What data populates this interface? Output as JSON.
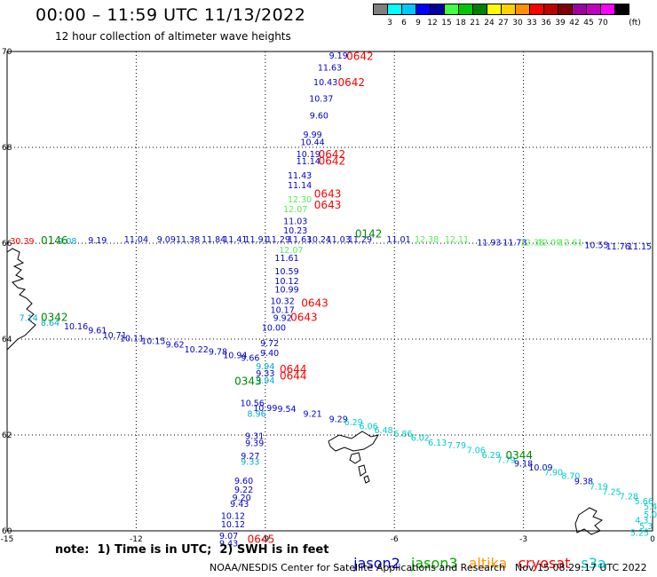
{
  "title": "00:00 – 11:59 UTC 11/13/2022",
  "subtitle": "12 hour collection of altimeter wave heights",
  "legend": {
    "unit": "(ft)",
    "colors": [
      "#7f7f7f",
      "#00ffff",
      "#00c8ff",
      "#0000ff",
      "#0000a0",
      "#40ff40",
      "#00c800",
      "#008000",
      "#ffff00",
      "#ffd000",
      "#ff9000",
      "#ff0000",
      "#c00000",
      "#800000",
      "#a000a0",
      "#c000c0",
      "#ff00ff",
      "#000000"
    ],
    "labels": [
      "3",
      "6",
      "9",
      "12",
      "15",
      "18",
      "21",
      "24",
      "27",
      "30",
      "33",
      "36",
      "39",
      "42",
      "45",
      "70"
    ]
  },
  "satellite_colors": {
    "jason2": "#0000cc",
    "jason3": "#00aa00",
    "altika": "#ff9900",
    "cryosat": "#ff0000",
    "s3a": "#00cccc"
  },
  "axes": {
    "lat_labels": [
      "70",
      "68",
      "66",
      "64",
      "62",
      "60"
    ],
    "lon_labels": [
      "-15",
      "-12",
      "-9",
      "-6",
      "-3",
      "0"
    ]
  },
  "observations": [
    {
      "t": "9.19",
      "c": "#0000cc",
      "lon": -7.3,
      "lat": 69.85
    },
    {
      "t": "11.63",
      "c": "#0000cc",
      "lon": -7.5,
      "lat": 69.6
    },
    {
      "t": "10.43",
      "c": "#0000cc",
      "lon": -7.6,
      "lat": 69.3
    },
    {
      "t": "10.37",
      "c": "#0000cc",
      "lon": -7.7,
      "lat": 68.95
    },
    {
      "t": "9.60",
      "c": "#0000cc",
      "lon": -7.75,
      "lat": 68.6
    },
    {
      "t": "9.99",
      "c": "#0000cc",
      "lon": -7.9,
      "lat": 68.2
    },
    {
      "t": "10.44",
      "c": "#0000cc",
      "lon": -7.9,
      "lat": 68.05
    },
    {
      "t": "10.19",
      "c": "#0000cc",
      "lon": -8.0,
      "lat": 67.8
    },
    {
      "t": "11.14",
      "c": "#0000cc",
      "lon": -8.0,
      "lat": 67.65
    },
    {
      "t": "11.43",
      "c": "#0000cc",
      "lon": -8.2,
      "lat": 67.35
    },
    {
      "t": "11.14",
      "c": "#0000cc",
      "lon": -8.2,
      "lat": 67.15
    },
    {
      "t": "12.30",
      "c": "#55ee55",
      "lon": -8.2,
      "lat": 66.85
    },
    {
      "t": "12.07",
      "c": "#55ee55",
      "lon": -8.3,
      "lat": 66.65
    },
    {
      "t": "11.03",
      "c": "#0000cc",
      "lon": -8.3,
      "lat": 66.4
    },
    {
      "t": "10.23",
      "c": "#0000cc",
      "lon": -8.3,
      "lat": 66.2
    },
    {
      "t": "12.07",
      "c": "#55ee55",
      "lon": -8.4,
      "lat": 65.8
    },
    {
      "t": "11.61",
      "c": "#0000cc",
      "lon": -8.5,
      "lat": 65.63
    },
    {
      "t": "10.59",
      "c": "#0000cc",
      "lon": -8.5,
      "lat": 65.35
    },
    {
      "t": "10.12",
      "c": "#0000cc",
      "lon": -8.5,
      "lat": 65.15
    },
    {
      "t": "10.99",
      "c": "#0000cc",
      "lon": -8.5,
      "lat": 64.97
    },
    {
      "t": "10.32",
      "c": "#0000cc",
      "lon": -8.6,
      "lat": 64.73
    },
    {
      "t": "10.17",
      "c": "#0000cc",
      "lon": -8.6,
      "lat": 64.55
    },
    {
      "t": "9.92",
      "c": "#0000cc",
      "lon": -8.6,
      "lat": 64.38
    },
    {
      "t": "10.00",
      "c": "#0000cc",
      "lon": -8.8,
      "lat": 64.18
    },
    {
      "t": "9.72",
      "c": "#0000cc",
      "lon": -8.9,
      "lat": 63.85
    },
    {
      "t": "9.40",
      "c": "#0000cc",
      "lon": -8.9,
      "lat": 63.65
    },
    {
      "t": "9.94",
      "c": "#00aacc",
      "lon": -9.0,
      "lat": 63.37
    },
    {
      "t": "9.33",
      "c": "#0000cc",
      "lon": -9.0,
      "lat": 63.22
    },
    {
      "t": "9.94",
      "c": "#00aacc",
      "lon": -9.0,
      "lat": 63.07
    },
    {
      "t": "10.56",
      "c": "#0000cc",
      "lon": -9.3,
      "lat": 62.6
    },
    {
      "t": "10.99",
      "c": "#0000cc",
      "lon": -9.0,
      "lat": 62.5
    },
    {
      "t": "8.96",
      "c": "#00aacc",
      "lon": -9.2,
      "lat": 62.38
    },
    {
      "t": "9.54",
      "c": "#0000cc",
      "lon": -8.5,
      "lat": 62.48
    },
    {
      "t": "9.21",
      "c": "#0000cc",
      "lon": -7.9,
      "lat": 62.38
    },
    {
      "t": "9.29",
      "c": "#0000cc",
      "lon": -7.3,
      "lat": 62.27
    },
    {
      "t": "9.31",
      "c": "#0000cc",
      "lon": -9.25,
      "lat": 61.92
    },
    {
      "t": "9.39",
      "c": "#0000cc",
      "lon": -9.25,
      "lat": 61.77
    },
    {
      "t": "9.27",
      "c": "#0000cc",
      "lon": -9.35,
      "lat": 61.5
    },
    {
      "t": "9.33",
      "c": "#00aacc",
      "lon": -9.35,
      "lat": 61.38
    },
    {
      "t": "9.60",
      "c": "#0000cc",
      "lon": -9.5,
      "lat": 60.98
    },
    {
      "t": "9.22",
      "c": "#0000cc",
      "lon": -9.5,
      "lat": 60.8
    },
    {
      "t": "9.20",
      "c": "#0000cc",
      "lon": -9.55,
      "lat": 60.63
    },
    {
      "t": "9.43",
      "c": "#0000cc",
      "lon": -9.6,
      "lat": 60.5
    },
    {
      "t": "10.12",
      "c": "#0000cc",
      "lon": -9.75,
      "lat": 60.25
    },
    {
      "t": "10.12",
      "c": "#0000cc",
      "lon": -9.75,
      "lat": 60.07
    },
    {
      "t": "9.07",
      "c": "#0000cc",
      "lon": -9.85,
      "lat": 59.83
    },
    {
      "t": "9.43",
      "c": "#0000cc",
      "lon": -9.85,
      "lat": 59.68
    },
    {
      "t": "30.39",
      "c": "#ff0000",
      "lon": -14.65,
      "lat": 65.98
    },
    {
      "t": "9.08",
      "c": "#00aacc",
      "lon": -13.6,
      "lat": 65.98
    },
    {
      "t": "9.19",
      "c": "#0000cc",
      "lon": -12.9,
      "lat": 66.0
    },
    {
      "t": "11.04",
      "c": "#0000cc",
      "lon": -12.0,
      "lat": 66.02
    },
    {
      "t": "9.09",
      "c": "#0000cc",
      "lon": -11.3,
      "lat": 66.02
    },
    {
      "t": "11.38",
      "c": "#0000cc",
      "lon": -10.8,
      "lat": 66.02
    },
    {
      "t": "11.84",
      "c": "#0000cc",
      "lon": -10.2,
      "lat": 66.02
    },
    {
      "t": "11.41",
      "c": "#0000cc",
      "lon": -9.7,
      "lat": 66.02
    },
    {
      "t": "11.91",
      "c": "#0000cc",
      "lon": -9.2,
      "lat": 66.02
    },
    {
      "t": "11.29",
      "c": "#0000cc",
      "lon": -8.7,
      "lat": 66.02
    },
    {
      "t": "11.63",
      "c": "#0000cc",
      "lon": -8.2,
      "lat": 66.02
    },
    {
      "t": "10.24",
      "c": "#0000cc",
      "lon": -7.75,
      "lat": 66.02
    },
    {
      "t": "11.03",
      "c": "#0000cc",
      "lon": -7.3,
      "lat": 66.02
    },
    {
      "t": "11.29",
      "c": "#0000cc",
      "lon": -6.8,
      "lat": 66.02
    },
    {
      "t": "11.01",
      "c": "#0000cc",
      "lon": -5.9,
      "lat": 66.02
    },
    {
      "t": "12.38",
      "c": "#55ee55",
      "lon": -5.25,
      "lat": 66.02
    },
    {
      "t": "12.11",
      "c": "#55ee55",
      "lon": -4.55,
      "lat": 66.02
    },
    {
      "t": "11.93",
      "c": "#0000cc",
      "lon": -3.8,
      "lat": 65.95
    },
    {
      "t": "11.73",
      "c": "#0000cc",
      "lon": -3.2,
      "lat": 65.95
    },
    {
      "t": "12.38",
      "c": "#55ee55",
      "lon": -2.8,
      "lat": 65.95
    },
    {
      "t": "12.09",
      "c": "#55ee55",
      "lon": -2.4,
      "lat": 65.95
    },
    {
      "t": "12.61",
      "c": "#55ee55",
      "lon": -1.9,
      "lat": 65.95
    },
    {
      "t": "10.55",
      "c": "#0000cc",
      "lon": -1.3,
      "lat": 65.9
    },
    {
      "t": "11.76",
      "c": "#0000cc",
      "lon": -0.8,
      "lat": 65.87
    },
    {
      "t": "11.15",
      "c": "#0000cc",
      "lon": -0.3,
      "lat": 65.87
    },
    {
      "t": "7.14",
      "c": "#00aacc",
      "lon": -14.5,
      "lat": 64.38
    },
    {
      "t": "8.64",
      "c": "#00aacc",
      "lon": -14.0,
      "lat": 64.28
    },
    {
      "t": "10.16",
      "c": "#0000cc",
      "lon": -13.4,
      "lat": 64.2
    },
    {
      "t": "9.61",
      "c": "#0000cc",
      "lon": -12.9,
      "lat": 64.12
    },
    {
      "t": "10.71",
      "c": "#0000cc",
      "lon": -12.5,
      "lat": 64.02
    },
    {
      "t": "10.11",
      "c": "#0000cc",
      "lon": -12.1,
      "lat": 63.95
    },
    {
      "t": "10.15",
      "c": "#0000cc",
      "lon": -11.6,
      "lat": 63.9
    },
    {
      "t": "9.62",
      "c": "#0000cc",
      "lon": -11.1,
      "lat": 63.82
    },
    {
      "t": "10.22",
      "c": "#0000cc",
      "lon": -10.6,
      "lat": 63.72
    },
    {
      "t": "9.78",
      "c": "#0000cc",
      "lon": -10.1,
      "lat": 63.68
    },
    {
      "t": "10.94",
      "c": "#0000cc",
      "lon": -9.7,
      "lat": 63.6
    },
    {
      "t": "9.66",
      "c": "#0000cc",
      "lon": -9.35,
      "lat": 63.55
    },
    {
      "t": "6.29",
      "c": "#00cccc",
      "lon": -6.95,
      "lat": 62.2
    },
    {
      "t": "6.06",
      "c": "#00cccc",
      "lon": -6.6,
      "lat": 62.12
    },
    {
      "t": "6.48",
      "c": "#00cccc",
      "lon": -6.25,
      "lat": 62.04
    },
    {
      "t": "6.86",
      "c": "#00cccc",
      "lon": -5.8,
      "lat": 61.96
    },
    {
      "t": "6.02",
      "c": "#00cccc",
      "lon": -5.4,
      "lat": 61.88
    },
    {
      "t": "6.13",
      "c": "#00cccc",
      "lon": -5.0,
      "lat": 61.78
    },
    {
      "t": "7.79",
      "c": "#00cccc",
      "lon": -4.55,
      "lat": 61.72
    },
    {
      "t": "7.06",
      "c": "#00cccc",
      "lon": -4.1,
      "lat": 61.62
    },
    {
      "t": "6.29",
      "c": "#00cccc",
      "lon": -3.75,
      "lat": 61.52
    },
    {
      "t": "7.79",
      "c": "#00cccc",
      "lon": -3.4,
      "lat": 61.42
    },
    {
      "t": "9.18",
      "c": "#0000cc",
      "lon": -3.0,
      "lat": 61.34
    },
    {
      "t": "10.09",
      "c": "#0000cc",
      "lon": -2.6,
      "lat": 61.26
    },
    {
      "t": "7.90",
      "c": "#00cccc",
      "lon": -2.3,
      "lat": 61.16
    },
    {
      "t": "8.70",
      "c": "#00cccc",
      "lon": -1.9,
      "lat": 61.08
    },
    {
      "t": "9.38",
      "c": "#0000cc",
      "lon": -1.6,
      "lat": 60.97
    },
    {
      "t": "7.19",
      "c": "#00cccc",
      "lon": -1.25,
      "lat": 60.86
    },
    {
      "t": "7.25",
      "c": "#00cccc",
      "lon": -0.95,
      "lat": 60.75
    },
    {
      "t": "7.28",
      "c": "#00cccc",
      "lon": -0.55,
      "lat": 60.66
    },
    {
      "t": "5.66",
      "c": "#00cccc",
      "lon": -0.2,
      "lat": 60.56
    },
    {
      "t": "5.4",
      "c": "#00cccc",
      "lon": -0.05,
      "lat": 60.44
    },
    {
      "t": "5.0",
      "c": "#00cccc",
      "lon": -0.05,
      "lat": 60.28
    },
    {
      "t": "4.3",
      "c": "#00cccc",
      "lon": -0.25,
      "lat": 60.16
    },
    {
      "t": "5.3",
      "c": "#00cccc",
      "lon": -0.15,
      "lat": 60.04
    },
    {
      "t": "5.25",
      "c": "#00cccc",
      "lon": -0.3,
      "lat": 59.9
    }
  ],
  "time_labels": [
    {
      "t": "0642",
      "c": "#ff0000",
      "lon": -6.8,
      "lat": 69.82
    },
    {
      "t": "0642",
      "c": "#ff0000",
      "lon": -7.0,
      "lat": 69.28
    },
    {
      "t": "0642",
      "c": "#ff0000",
      "lon": -7.45,
      "lat": 67.78
    },
    {
      "t": "0642",
      "c": "#ff0000",
      "lon": -7.45,
      "lat": 67.64
    },
    {
      "t": "0643",
      "c": "#ff0000",
      "lon": -7.55,
      "lat": 66.95
    },
    {
      "t": "0643",
      "c": "#ff0000",
      "lon": -7.55,
      "lat": 66.72
    },
    {
      "t": "0643",
      "c": "#ff0000",
      "lon": -7.85,
      "lat": 64.68
    },
    {
      "t": "0643",
      "c": "#ff0000",
      "lon": -8.1,
      "lat": 64.38
    },
    {
      "t": "0644",
      "c": "#ff0000",
      "lon": -8.35,
      "lat": 63.3
    },
    {
      "t": "0644",
      "c": "#ff0000",
      "lon": -8.35,
      "lat": 63.16
    },
    {
      "t": "0645",
      "c": "#ff0000",
      "lon": -9.1,
      "lat": 59.75
    },
    {
      "t": "0142",
      "c": "#008800",
      "lon": -6.6,
      "lat": 66.12
    },
    {
      "t": "0146",
      "c": "#008800",
      "lon": -13.9,
      "lat": 65.98
    },
    {
      "t": "0342",
      "c": "#008800",
      "lon": -13.9,
      "lat": 64.38
    },
    {
      "t": "0343",
      "c": "#008800",
      "lon": -9.4,
      "lat": 63.05
    },
    {
      "t": "0344",
      "c": "#008800",
      "lon": -3.1,
      "lat": 61.5
    }
  ],
  "note": "note:  1) Time is in UTC;  2) SWH is in feet",
  "satellites": [
    "jason2",
    "jason3",
    "altika",
    "cryosat",
    "s3a"
  ],
  "footer": "NOAA/NESDIS Center for Satellite Applications and Research",
  "footer_time": "Nov 15 08:29:17 UTC 2022"
}
